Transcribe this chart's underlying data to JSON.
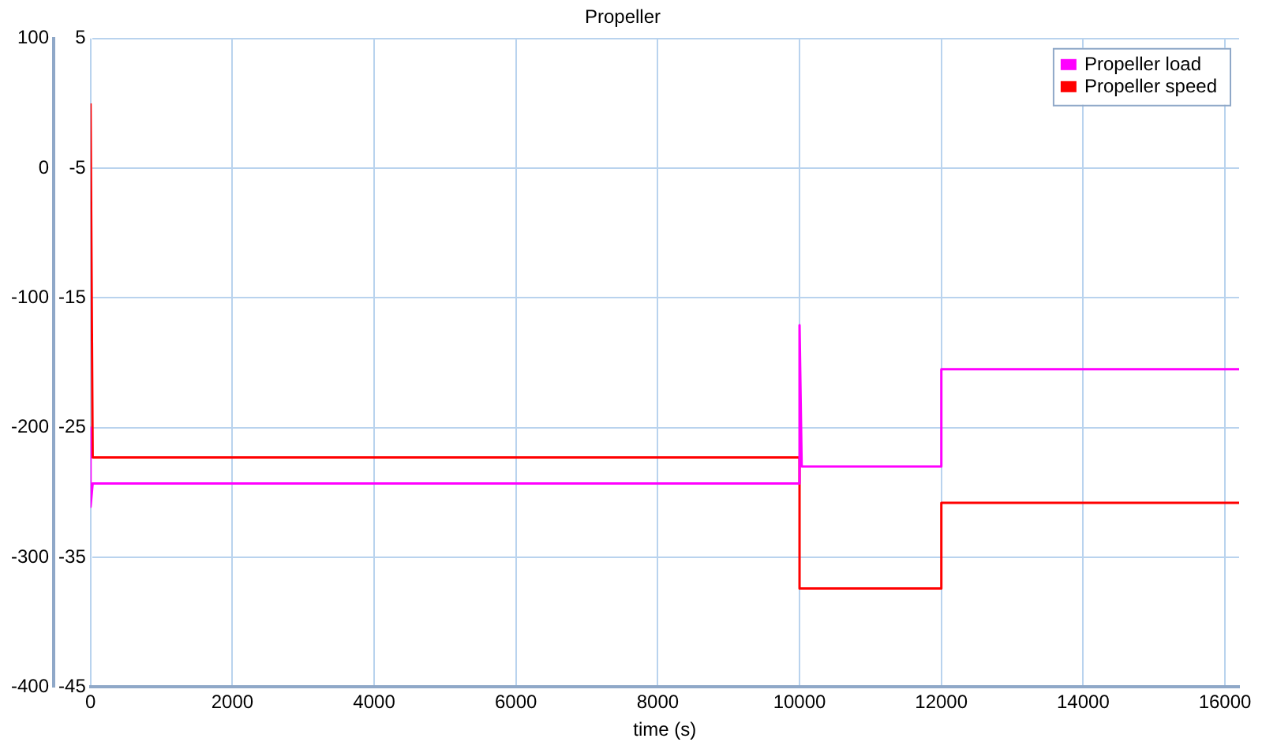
{
  "chart_data": {
    "type": "line",
    "title": "Propeller",
    "xlabel": "time (s)",
    "xlim": [
      0,
      16200
    ],
    "xticks": [
      0,
      2000,
      4000,
      6000,
      8000,
      10000,
      12000,
      14000,
      16000
    ],
    "ylim": [
      -400,
      100
    ],
    "yticks": [
      -400,
      -300,
      -200,
      -100,
      0,
      100
    ],
    "y2lim": [
      -45,
      5
    ],
    "y2ticks": [
      -45,
      -35,
      -25,
      -15,
      -5,
      5
    ],
    "grid": true,
    "legend": "top right",
    "marker": "none",
    "line_style": "solid",
    "series": [
      {
        "name": "Propeller load",
        "color": "#ff00ff",
        "axis": "y",
        "x": [
          0,
          0,
          30,
          10000,
          10000,
          10030,
          12000,
          12000,
          16200
        ],
        "values": [
          -200,
          -261,
          -243,
          -243,
          -121,
          -230,
          -230,
          -155,
          -155
        ]
      },
      {
        "name": "Propeller speed",
        "color": "#ff0000",
        "axis": "y2",
        "x": [
          0,
          30,
          10000,
          10000,
          12000,
          12000,
          16200
        ],
        "values": [
          0,
          -27.3,
          -27.3,
          -37.4,
          -37.4,
          -30.8,
          -30.8
        ]
      }
    ]
  }
}
